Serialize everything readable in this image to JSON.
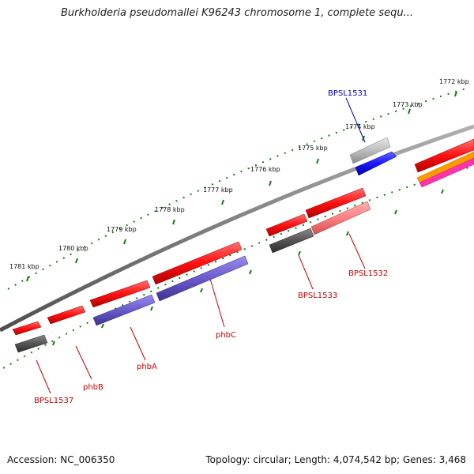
{
  "title": "Burkholderia pseudomallei K96243 chromosome 1, complete sequ...",
  "footer": {
    "accession": "Accession: NC_006350",
    "summary": "Topology: circular; Length: 4,074,542 bp; Genes: 3,468"
  },
  "colors": {
    "backbone": "#7f7f7f",
    "ruler_dots": "#1a7a1a",
    "label_red": "#cc0000",
    "label_blue": "#0000cc",
    "gene_red": "#ff1010",
    "gene_purple": "#6a5acd",
    "gene_gray": "#555555",
    "gene_light_gray": "#bdbdbd",
    "gene_blue": "#1a1aff",
    "gene_pink": "#ff8080",
    "gene_orange": "#ff9900",
    "gene_magenta": "#ff33aa"
  },
  "ruler_ticks": [
    "1772 kbp",
    "1773 kbp",
    "1774 kbp",
    "1775 kbp",
    "1776 kbp",
    "1777 kbp",
    "1778 kbp",
    "1779 kbp",
    "1780 kbp",
    "1781 kbp"
  ],
  "gene_labels": [
    {
      "name": "BPSL1531",
      "color": "blue"
    },
    {
      "name": "BPSL1532",
      "color": "red"
    },
    {
      "name": "BPSL1533",
      "color": "red"
    },
    {
      "name": "phbC",
      "color": "red"
    },
    {
      "name": "phbA",
      "color": "red"
    },
    {
      "name": "phbB",
      "color": "red"
    },
    {
      "name": "BPSL1537",
      "color": "red"
    }
  ]
}
